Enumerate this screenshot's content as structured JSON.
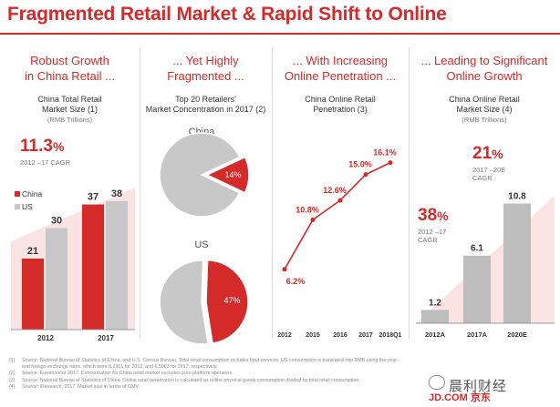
{
  "title": "Fragmented Retail Market & Rapid Shift to Online",
  "panels": [
    {
      "title_lines": [
        "Robust Growth",
        "in China Retail ..."
      ],
      "subtitle_lines": [
        "China Total Retail",
        "Market Size (1)"
      ],
      "unit": "(RMB Trillions)",
      "cagr": {
        "value": "11.3",
        "pct": "%",
        "label": "2012 –17 CAGR"
      }
    },
    {
      "title_lines": [
        "... Yet Highly",
        "Fragmented ..."
      ],
      "subtitle_lines": [
        "Top 20 Retailers'",
        "Market Concentration in 2017 (2)"
      ]
    },
    {
      "title_lines": [
        "... With Increasing",
        "Online Penetration ..."
      ],
      "subtitle_lines": [
        "China Online Retail",
        "Penetration (3)"
      ]
    },
    {
      "title_lines": [
        "... Leading to Significant",
        "Online Growth"
      ],
      "subtitle_lines": [
        "China Online Retail",
        "Market Size (4)"
      ],
      "unit": "(RMB Trillions)",
      "cagr_top": {
        "value": "21",
        "pct": "%",
        "label_lines": [
          "2017 –20E",
          "CAGR"
        ]
      },
      "cagr_bottom": {
        "value": "38",
        "pct": "%",
        "label_lines": [
          "2012 –17",
          "CAGR"
        ]
      }
    }
  ],
  "chart_data": [
    {
      "type": "bar",
      "categories": [
        "2012",
        "2017"
      ],
      "series": [
        {
          "name": "China",
          "values": [
            21,
            37
          ],
          "color": "#d42a2a"
        },
        {
          "name": "US",
          "values": [
            30,
            38
          ],
          "color": "#c8c8c8"
        }
      ],
      "ylim": [
        0,
        42
      ],
      "legend": "left"
    },
    {
      "type": "pie",
      "name": "China",
      "slices": [
        {
          "label": "14%",
          "value": 14,
          "color": "#d42a2a"
        },
        {
          "label": "",
          "value": 86,
          "color": "#c8c8c8"
        }
      ]
    },
    {
      "type": "pie",
      "name": "US",
      "slices": [
        {
          "label": "47%",
          "value": 47,
          "color": "#d42a2a"
        },
        {
          "label": "",
          "value": 53,
          "color": "#c8c8c8"
        }
      ]
    },
    {
      "type": "line",
      "categories": [
        "2012",
        "2015",
        "2016",
        "2017",
        "2018Q1"
      ],
      "values": [
        6.2,
        10.8,
        12.6,
        15.0,
        16.1
      ],
      "labels": [
        "6.2%",
        "10.8%",
        "12.6%",
        "15.0%",
        "16.1%"
      ],
      "color": "#d42a2a",
      "ylim": [
        5,
        17
      ]
    },
    {
      "type": "bar",
      "categories": [
        "2012A",
        "2017A",
        "2020E"
      ],
      "values": [
        1.2,
        6.1,
        10.8
      ],
      "color": "#bdbdbd",
      "ylim": [
        0,
        11.5
      ]
    }
  ],
  "footnotes": [
    {
      "num": "(1)",
      "text": "Source: National Bureau of Statistics of China, and U.S. Census Bureau. Total retail consumption includes food services. US consumption is translated into RMB using the year-end foreign exchange rates, which were 6.2301 for 2012, and 6.5063 for 2017, respectively."
    },
    {
      "num": "(2)",
      "text": "Source: Euromonitor 2017. Concentration for China retail market excludes pure platform operators."
    },
    {
      "num": "(3)",
      "text": "Source: National Bureau of Statistics of China. Online retail penetration is calculated as online physical goods consumption divided by total retail consumption."
    },
    {
      "num": "(4)",
      "text": "Source: iResearch, 2017. Market size in terms of GMV."
    }
  ],
  "watermark": {
    "text": "晨利财经",
    "brand": "JD.COM 京东"
  }
}
